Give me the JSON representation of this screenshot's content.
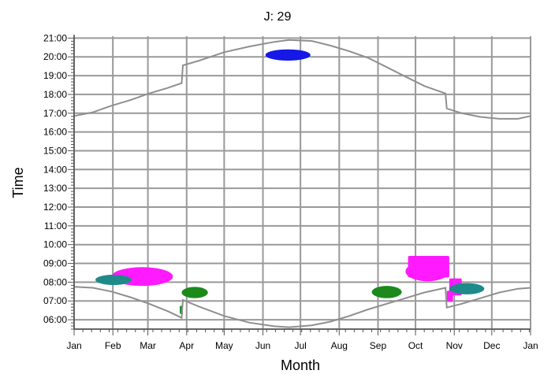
{
  "chart_data": {
    "type": "scatter",
    "title": "J: 29",
    "xlabel": "Month",
    "ylabel": "Time",
    "x_tick_labels": [
      "Jan",
      "Feb",
      "Mar",
      "Apr",
      "May",
      "Jun",
      "Jul",
      "Aug",
      "Sep",
      "Oct",
      "Nov",
      "Dec",
      "Jan"
    ],
    "y_tick_labels": [
      "06:00",
      "07:00",
      "08:00",
      "09:00",
      "10:00",
      "11:00",
      "12:00",
      "13:00",
      "14:00",
      "15:00",
      "16:00",
      "17:00",
      "18:00",
      "19:00",
      "20:00",
      "21:00"
    ],
    "xlim_days": [
      0,
      365
    ],
    "ylim_hours": [
      5.5,
      21.1
    ],
    "grid": true,
    "colors": {
      "grid": "#999999",
      "axes": "#555555",
      "curve": "#8f8f8f",
      "blue": "#1518e6",
      "magenta": "#ff1aff",
      "teal": "#1f8a8a",
      "green": "#1b8a1b"
    },
    "boundary_curves": {
      "upper": [
        [
          0,
          16.85
        ],
        [
          15,
          17.05
        ],
        [
          30,
          17.4
        ],
        [
          45,
          17.7
        ],
        [
          60,
          18.05
        ],
        [
          75,
          18.35
        ],
        [
          86,
          18.6
        ],
        [
          87,
          19.55
        ],
        [
          100,
          19.8
        ],
        [
          120,
          20.25
        ],
        [
          140,
          20.55
        ],
        [
          160,
          20.8
        ],
        [
          172,
          20.9
        ],
        [
          190,
          20.85
        ],
        [
          205,
          20.6
        ],
        [
          220,
          20.3
        ],
        [
          235,
          19.95
        ],
        [
          250,
          19.45
        ],
        [
          265,
          18.95
        ],
        [
          280,
          18.45
        ],
        [
          297,
          18.05
        ],
        [
          298,
          17.25
        ],
        [
          310,
          17.0
        ],
        [
          325,
          16.8
        ],
        [
          340,
          16.7
        ],
        [
          355,
          16.7
        ],
        [
          365,
          16.85
        ]
      ],
      "lower": [
        [
          0,
          7.75
        ],
        [
          15,
          7.7
        ],
        [
          30,
          7.5
        ],
        [
          45,
          7.2
        ],
        [
          60,
          6.85
        ],
        [
          75,
          6.45
        ],
        [
          86,
          6.1
        ],
        [
          87,
          7.05
        ],
        [
          100,
          6.7
        ],
        [
          120,
          6.2
        ],
        [
          140,
          5.85
        ],
        [
          160,
          5.65
        ],
        [
          172,
          5.6
        ],
        [
          190,
          5.7
        ],
        [
          205,
          5.9
        ],
        [
          220,
          6.2
        ],
        [
          235,
          6.55
        ],
        [
          250,
          6.85
        ],
        [
          265,
          7.15
        ],
        [
          280,
          7.45
        ],
        [
          297,
          7.7
        ],
        [
          298,
          6.65
        ],
        [
          310,
          6.85
        ],
        [
          325,
          7.15
        ],
        [
          340,
          7.45
        ],
        [
          355,
          7.65
        ],
        [
          365,
          7.7
        ]
      ]
    },
    "blobs": [
      {
        "color": "blue",
        "shape": "ellipse",
        "day_range": [
          153,
          189
        ],
        "hour_range": [
          19.8,
          20.4
        ]
      },
      {
        "color": "magenta",
        "shape": "ellipse",
        "day_range": [
          30,
          79
        ],
        "hour_range": [
          7.8,
          8.8
        ]
      },
      {
        "color": "teal",
        "shape": "ellipse",
        "day_range": [
          17,
          46
        ],
        "hour_range": [
          7.85,
          8.4
        ]
      },
      {
        "color": "green",
        "shape": "ellipse",
        "day_range": [
          86,
          107
        ],
        "hour_range": [
          7.15,
          7.75
        ]
      },
      {
        "color": "green",
        "shape": "rect",
        "day_range": [
          84.5,
          87
        ],
        "hour_range": [
          6.3,
          6.75
        ]
      },
      {
        "color": "green",
        "shape": "ellipse",
        "day_range": [
          238,
          262
        ],
        "hour_range": [
          7.15,
          7.8
        ]
      },
      {
        "color": "magenta",
        "shape": "rect",
        "day_range": [
          267,
          300
        ],
        "hour_range": [
          8.25,
          9.4
        ]
      },
      {
        "color": "magenta",
        "shape": "ellipse",
        "day_range": [
          265,
          300
        ],
        "hour_range": [
          8.05,
          9.1
        ]
      },
      {
        "color": "magenta",
        "shape": "rect",
        "day_range": [
          300,
          310
        ],
        "hour_range": [
          7.3,
          8.2
        ]
      },
      {
        "color": "magenta",
        "shape": "rect",
        "day_range": [
          298,
          303
        ],
        "hour_range": [
          6.95,
          7.55
        ]
      },
      {
        "color": "teal",
        "shape": "ellipse",
        "day_range": [
          300,
          328
        ],
        "hour_range": [
          7.35,
          7.95
        ]
      }
    ]
  }
}
